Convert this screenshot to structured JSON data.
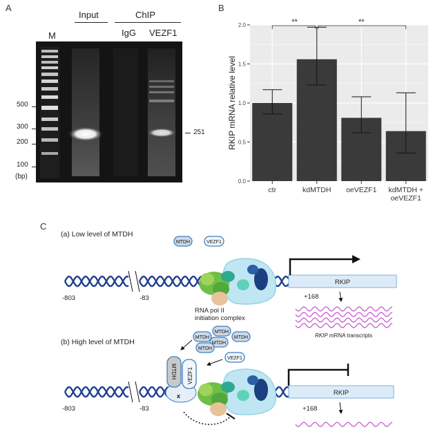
{
  "panels": {
    "a": "A",
    "b": "B",
    "c": "C"
  },
  "gel": {
    "headers": {
      "input": "Input",
      "chip": "ChIP",
      "marker": "M",
      "igg": "IgG",
      "vezf1": "VEZF1"
    },
    "ladder_labels": [
      "500",
      "300",
      "200",
      "100",
      "(bp)"
    ],
    "band_label": "251"
  },
  "chart_data": {
    "type": "bar",
    "categories": [
      "ctr",
      "kdMTDH",
      "oeVEZF1",
      "kdMTDH +\noeVEZF1"
    ],
    "values": [
      1.0,
      1.56,
      0.81,
      0.64
    ],
    "error_low": [
      0.86,
      1.23,
      0.62,
      0.36
    ],
    "error_high": [
      1.17,
      1.97,
      1.08,
      1.13
    ],
    "ylabel": "RKIP mRNA relative level",
    "ylim": [
      0,
      2.0
    ],
    "yticks": [
      "0.0",
      "0.5",
      "1.0",
      "1.5",
      "2.0"
    ],
    "significance": [
      "**",
      "**"
    ],
    "bar_color": "#3a3a3a",
    "background": "#ebebeb",
    "grid": true
  },
  "schematic": {
    "low_title": "(a) Low level of MTDH",
    "high_title": "(b) High level of MTDH",
    "mtdh": "MTDH",
    "vezf1": "VEZF1",
    "pos_803": "-803",
    "pos_83": "-83",
    "pos_168": "+168",
    "rkip": "RKIP",
    "pol_label_1": "RNA pol II",
    "pol_label_2": "initiation complex",
    "transcripts_italic": "RKIP",
    "transcripts_rest": " mRNA transcripts",
    "x_mark": "x",
    "colors": {
      "dna": "#1f3f8f",
      "box_fill": "#dcebf7",
      "box_stroke": "#7fb2dd",
      "mrna": "#c255c9",
      "protein_fill": "#cfd9e6",
      "protein_stroke": "#3c7fc1"
    }
  }
}
